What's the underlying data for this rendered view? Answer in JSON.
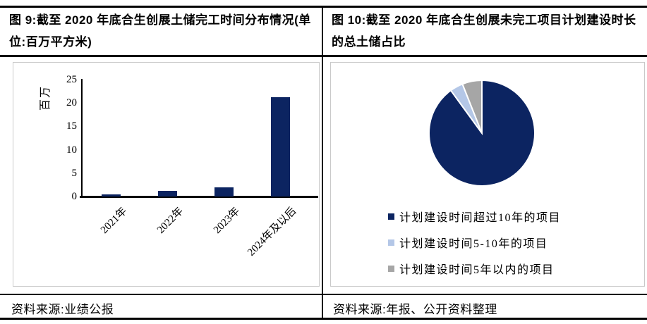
{
  "colors": {
    "navy": "#0c2461",
    "light_blue": "#b4c7e7",
    "gray": "#a6a6a6",
    "box_border": "#c9c9c9"
  },
  "left_panel": {
    "title": "图 9:截至 2020 年底合生创展土储完工时间分布情况(单位:百万平方米)",
    "source": "资料来源:业绩公报"
  },
  "right_panel": {
    "title": "图 10:截至 2020 年底合生创展未完工项目计划建设时长的总土储占比",
    "source": "资料来源:年报、公开资料整理"
  },
  "chart_data": [
    {
      "type": "bar",
      "title": "截至2020年底合生创展土储完工时间分布情况",
      "categories": [
        "2021年",
        "2022年",
        "2023年",
        "2024年及以后"
      ],
      "values": [
        0.5,
        1.2,
        1.9,
        21.3
      ],
      "xlabel": "",
      "ylabel": "百万",
      "yticks": [
        0,
        5,
        10,
        15,
        20,
        25
      ],
      "ylim": [
        0,
        25
      ],
      "grid": false,
      "bar_color": "#0c2461"
    },
    {
      "type": "pie",
      "title": "截至2020年底合生创展未完工项目计划建设时长的总土储占比",
      "labels": [
        "计划建设时间超过10年的项目",
        "计划建设时间5-10年的项目",
        "计划建设时间5年以内的项目"
      ],
      "values": [
        90,
        4,
        6
      ],
      "colors": [
        "#0c2461",
        "#b4c7e7",
        "#a6a6a6"
      ],
      "legend_position": "bottom",
      "start_angle_deg": 0,
      "direction": "clockwise"
    }
  ]
}
